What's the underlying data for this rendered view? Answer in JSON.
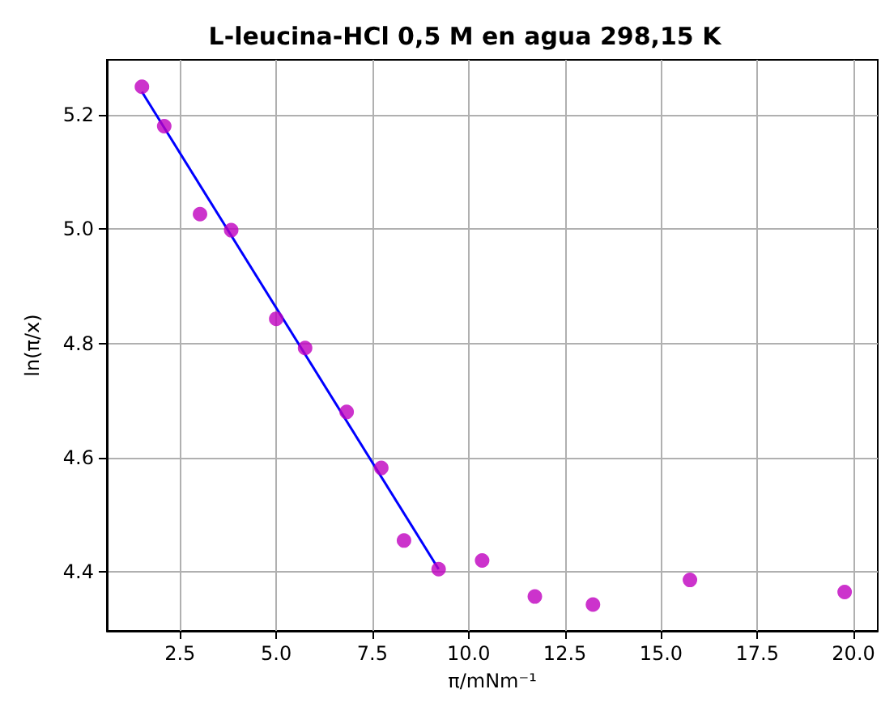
{
  "chart_data": {
    "type": "scatter",
    "title": "L-leucina-HCl 0,5 M en agua 298,15 K",
    "xlabel": "π/mNm⁻¹",
    "ylabel": "ln(π/x)",
    "series": [
      {
        "color": "#bf00bf",
        "marker": "circle",
        "x": [
          1.51,
          2.09,
          3.02,
          3.83,
          5.0,
          5.75,
          6.83,
          7.73,
          8.32,
          9.22,
          10.35,
          11.72,
          13.23,
          15.75,
          19.77
        ],
        "values": [
          5.249,
          5.18,
          5.026,
          4.998,
          4.843,
          4.792,
          4.68,
          4.582,
          4.455,
          4.405,
          4.42,
          4.357,
          4.343,
          4.386,
          4.365
        ]
      },
      {
        "type": "line",
        "color": "#0000ff",
        "marker": "none",
        "line_style": "solid",
        "x": [
          1.51,
          9.22
        ],
        "values": [
          5.24,
          4.405
        ]
      }
    ],
    "xlim": [
      0.6,
      20.63
    ],
    "xticks": [
      {
        "value": 2.5,
        "label": "2.5"
      },
      {
        "value": 5,
        "label": "5.0"
      },
      {
        "value": 7.5,
        "label": "7.5"
      },
      {
        "value": 10,
        "label": "10.0"
      },
      {
        "value": 12.5,
        "label": "12.5"
      },
      {
        "value": 15,
        "label": "15.0"
      },
      {
        "value": 17.5,
        "label": "17.5"
      },
      {
        "value": 20,
        "label": "20.0"
      }
    ],
    "ylim": [
      4.297,
      5.296
    ],
    "yticks": [
      {
        "value": 4.4,
        "label": "4.4"
      },
      {
        "value": 4.6,
        "label": "4.6"
      },
      {
        "value": 4.8,
        "label": "4.8"
      },
      {
        "value": 5,
        "label": "5.0"
      },
      {
        "value": 5.2,
        "label": "5.2"
      }
    ],
    "grid": true
  }
}
